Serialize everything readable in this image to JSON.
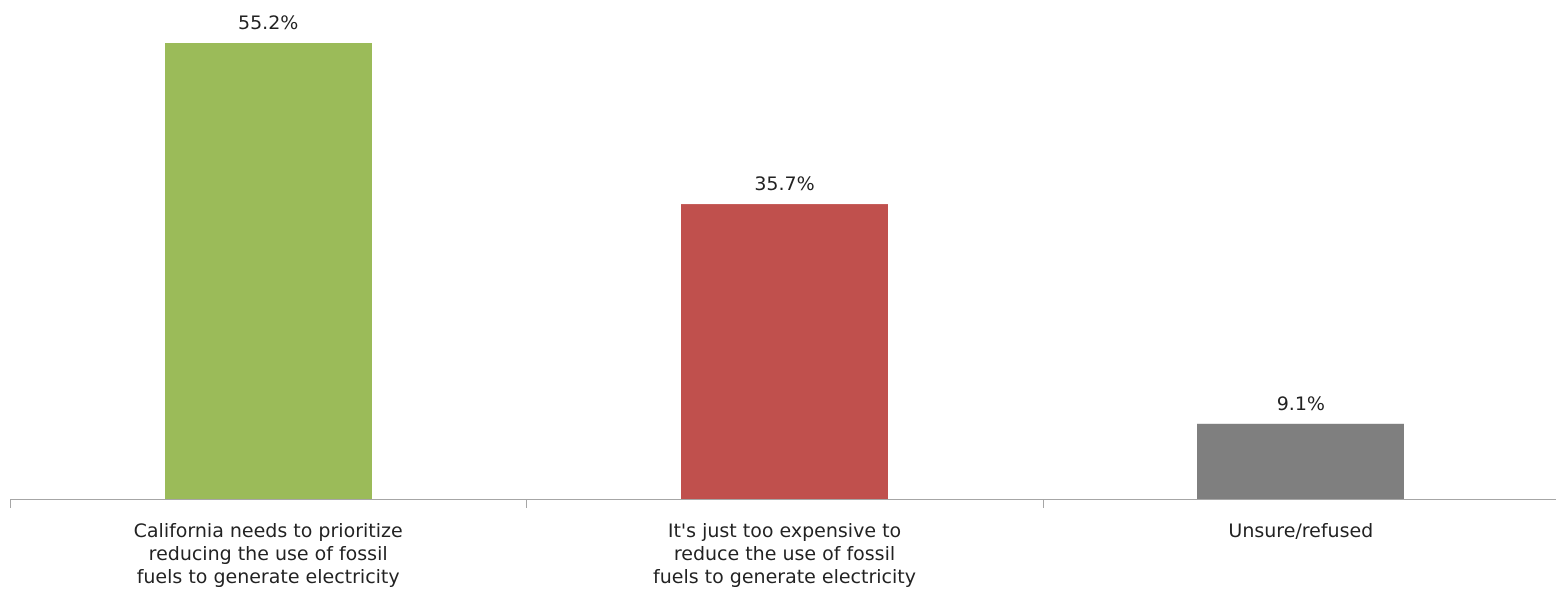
{
  "chart_data": {
    "type": "bar",
    "title": "",
    "xlabel": "",
    "ylabel": "",
    "ylim": [
      0,
      60
    ],
    "grid": false,
    "legend": "none",
    "categories": [
      [
        "California needs to prioritize",
        "reducing the use of fossil",
        "fuels to generate electricity"
      ],
      [
        "It's just too expensive to",
        "reduce the use of fossil",
        "fuels to generate electricity"
      ],
      [
        "Unsure/refused"
      ]
    ],
    "values": [
      55.2,
      35.7,
      9.1
    ],
    "value_labels": [
      "55.2%",
      "35.7%",
      "9.1%"
    ],
    "colors": [
      "#9BBB59",
      "#C0504D",
      "#7F7F7F"
    ],
    "axis_color": "#A6A6A6"
  }
}
